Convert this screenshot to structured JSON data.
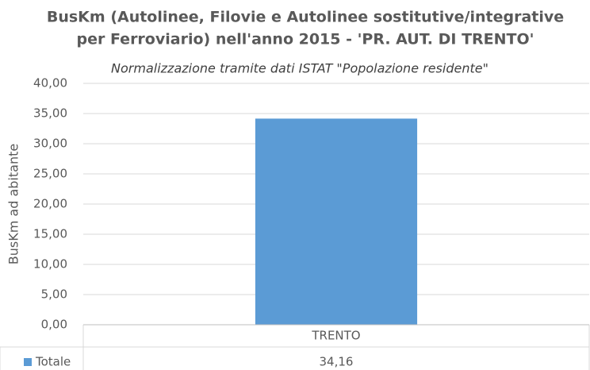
{
  "chart_data": {
    "type": "bar",
    "title": [
      "BusKm (Autolinee, Filovie e Autolinee sostitutive/integrative",
      "per Ferroviario) nell'anno 2015 - 'PR. AUT. DI TRENTO'"
    ],
    "subtitle": "Normalizzazione tramite dati ISTAT \"Popolazione residente\"",
    "y_label": "BusKm ad abitante",
    "categories": [
      "TRENTO"
    ],
    "series": [
      {
        "name": "Totale",
        "color": "#5b9bd5",
        "values": [
          34.16
        ],
        "value_labels": [
          "34,16"
        ]
      }
    ],
    "ylim": [
      0,
      40
    ],
    "yticks": [
      {
        "value": 0,
        "label": "0,00"
      },
      {
        "value": 5,
        "label": "5,00"
      },
      {
        "value": 10,
        "label": "10,00"
      },
      {
        "value": 15,
        "label": "15,00"
      },
      {
        "value": 20,
        "label": "20,00"
      },
      {
        "value": 25,
        "label": "25,00"
      },
      {
        "value": 30,
        "label": "30,00"
      },
      {
        "value": 35,
        "label": "35,00"
      },
      {
        "value": 40,
        "label": "40,00"
      }
    ],
    "grid": true
  }
}
